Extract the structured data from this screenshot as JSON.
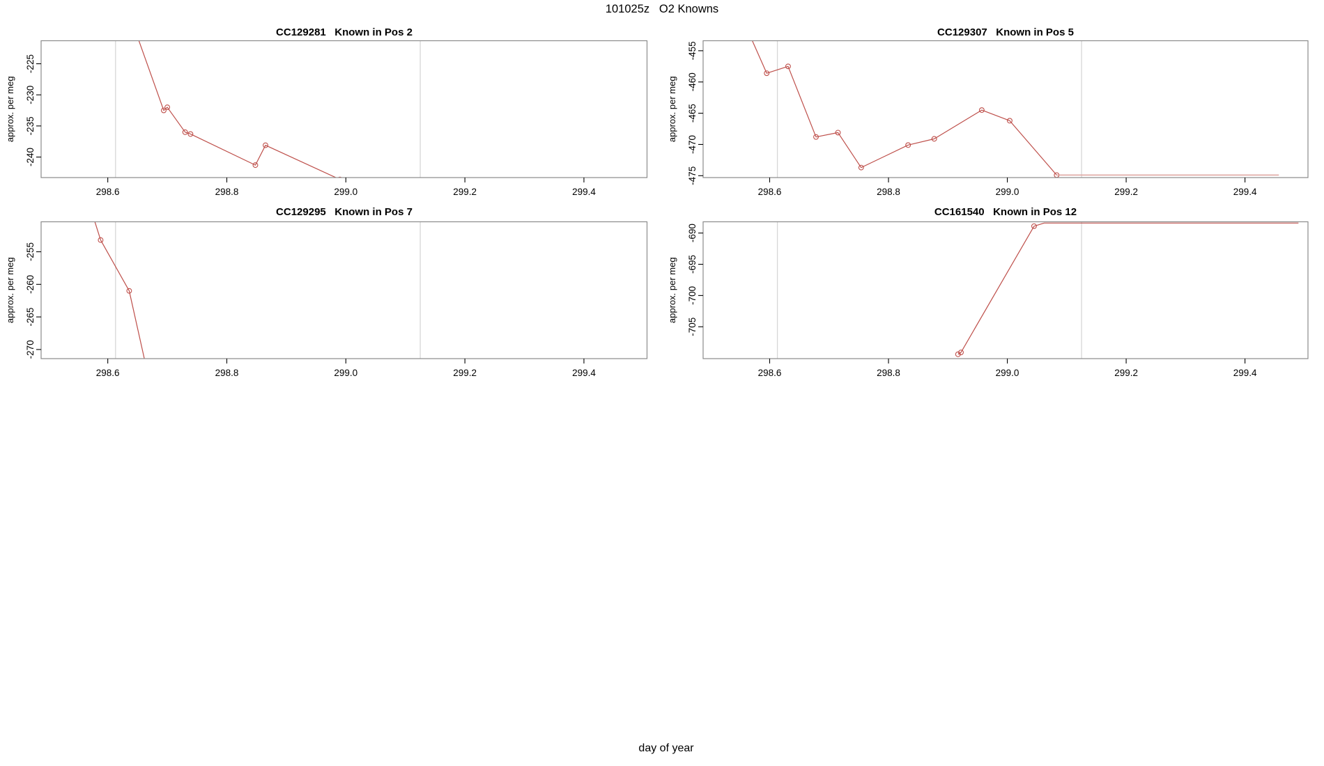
{
  "figure": {
    "title": "101025z   O2 Knowns",
    "xlabel": "day of year",
    "ylabel": "approx. per meg"
  },
  "chart_data": [
    {
      "type": "line",
      "title": "CC129281   Known in Pos 2",
      "sample_id": "CC129281",
      "position": "Known in Pos 2",
      "xlim": [
        298.488,
        299.506
      ],
      "ylim": [
        -243.3,
        -221.3
      ],
      "xticks": [
        298.6,
        298.8,
        299.0,
        299.2,
        299.4
      ],
      "yticks": [
        -225,
        -230,
        -235,
        -240
      ],
      "guide_vlines": [
        298.613,
        299.125
      ],
      "grid": "off",
      "legend": "none",
      "marker": "open-circle",
      "series": [
        {
          "name": "main",
          "color": "#be4f4a",
          "width": 1.2,
          "points": [
            [
              298.64,
              -218.0,
              0
            ],
            [
              298.694,
              -232.5,
              1
            ],
            [
              298.7,
              -232.0,
              1
            ],
            [
              298.73,
              -236.0,
              1
            ],
            [
              298.739,
              -236.3,
              1
            ],
            [
              298.848,
              -241.3,
              1
            ],
            [
              298.865,
              -238.1,
              1
            ],
            [
              298.99,
              -243.6,
              1
            ]
          ]
        }
      ]
    },
    {
      "type": "line",
      "title": "CC129307   Known in Pos 5",
      "sample_id": "CC129307",
      "position": "Known in Pos 5",
      "xlim": [
        298.488,
        299.506
      ],
      "ylim": [
        -475.3,
        -453.4
      ],
      "xticks": [
        298.6,
        298.8,
        299.0,
        299.2,
        299.4
      ],
      "yticks": [
        -455,
        -460,
        -465,
        -470,
        -475
      ],
      "guide_vlines": [
        298.613,
        299.125
      ],
      "grid": "off",
      "legend": "none",
      "marker": "open-circle",
      "series": [
        {
          "name": "main",
          "color": "#be4f4a",
          "width": 1.2,
          "points": [
            [
              298.555,
              -450.0,
              0
            ],
            [
              298.595,
              -458.6,
              1
            ],
            [
              298.631,
              -457.5,
              1
            ],
            [
              298.678,
              -468.8,
              1
            ],
            [
              298.715,
              -468.1,
              1
            ],
            [
              298.754,
              -473.7,
              1
            ],
            [
              298.833,
              -470.1,
              1
            ],
            [
              298.877,
              -469.1,
              1
            ],
            [
              298.957,
              -464.5,
              1
            ],
            [
              299.004,
              -466.2,
              1
            ],
            [
              299.083,
              -474.9,
              1
            ]
          ]
        },
        {
          "name": "flat-tail",
          "color": "#dda19c",
          "width": 1.5,
          "points": [
            [
              299.083,
              -474.9,
              0
            ],
            [
              299.457,
              -474.9,
              0
            ]
          ]
        }
      ]
    },
    {
      "type": "line",
      "title": "CC129295   Known in Pos 7",
      "sample_id": "CC129295",
      "position": "Known in Pos 7",
      "xlim": [
        298.488,
        299.506
      ],
      "ylim": [
        -271.4,
        -250.4
      ],
      "xticks": [
        298.6,
        298.8,
        299.0,
        299.2,
        299.4
      ],
      "yticks": [
        -255,
        -260,
        -265,
        -270
      ],
      "guide_vlines": [
        298.613,
        299.125
      ],
      "grid": "off",
      "legend": "none",
      "marker": "open-circle",
      "series": [
        {
          "name": "main",
          "color": "#be4f4a",
          "width": 1.2,
          "points": [
            [
              298.57,
              -248.0,
              0
            ],
            [
              298.588,
              -253.2,
              1
            ],
            [
              298.636,
              -261.0,
              1
            ],
            [
              298.68,
              -279.0,
              0
            ]
          ]
        }
      ]
    },
    {
      "type": "line",
      "title": "CC161540   Known in Pos 12",
      "sample_id": "CC161540",
      "position": "Known in Pos 12",
      "xlim": [
        298.488,
        299.506
      ],
      "ylim": [
        -710.1,
        -688.2
      ],
      "xticks": [
        298.6,
        298.8,
        299.0,
        299.2,
        299.4
      ],
      "yticks": [
        -690,
        -695,
        -700,
        -705
      ],
      "guide_vlines": [
        298.613,
        299.125
      ],
      "grid": "off",
      "legend": "none",
      "marker": "open-circle",
      "series": [
        {
          "name": "main",
          "color": "#be4f4a",
          "width": 1.2,
          "points": [
            [
              298.917,
              -709.4,
              1
            ],
            [
              298.922,
              -709.1,
              1
            ],
            [
              299.045,
              -688.9,
              1
            ],
            [
              299.062,
              -688.4,
              0
            ],
            [
              299.49,
              -688.4,
              0
            ]
          ]
        }
      ]
    }
  ]
}
